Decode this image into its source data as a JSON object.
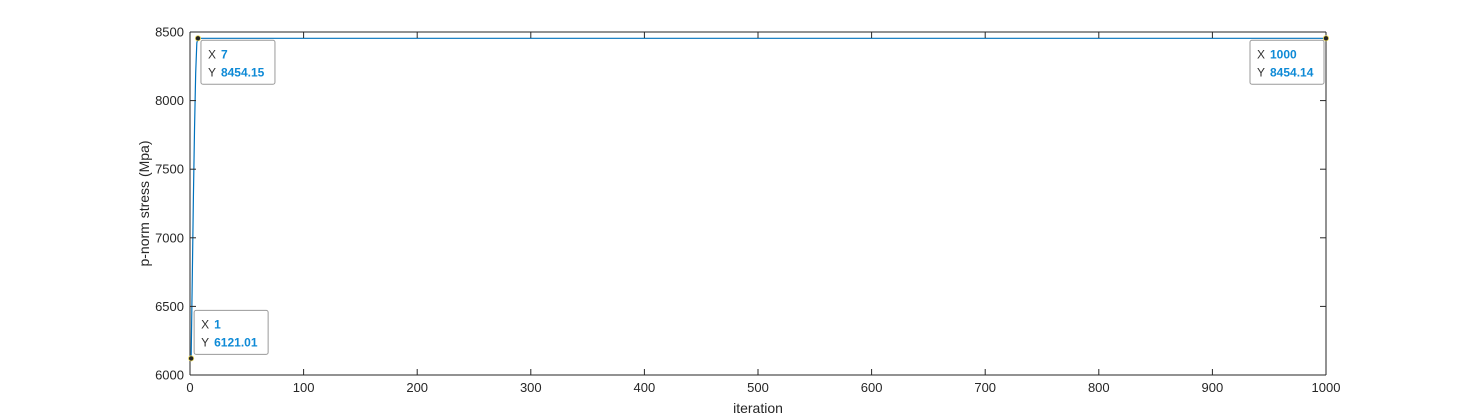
{
  "chart_data": {
    "type": "line",
    "xlabel": "iteration",
    "ylabel": "p-norm stress (Mpa)",
    "xlim": [
      0,
      1000
    ],
    "ylim": [
      6000,
      8500
    ],
    "xticks": [
      0,
      100,
      200,
      300,
      400,
      500,
      600,
      700,
      800,
      900,
      1000
    ],
    "yticks": [
      6000,
      6500,
      7000,
      7500,
      8000,
      8500
    ],
    "grid": false,
    "series": [
      {
        "color": "#0072bd",
        "x": [
          1,
          2,
          3,
          4,
          5,
          6,
          7,
          50,
          100,
          200,
          300,
          400,
          500,
          600,
          700,
          800,
          900,
          1000
        ],
        "y": [
          6121.01,
          6700,
          7300,
          7800,
          8200,
          8420,
          8454.15,
          8454.15,
          8454.15,
          8454.15,
          8454.14,
          8454.14,
          8454.14,
          8454.14,
          8454.14,
          8454.14,
          8454.14,
          8454.14
        ]
      }
    ],
    "datatips": [
      {
        "x_key": "X",
        "y_key": "Y",
        "x_value": "1",
        "y_value": "6121.01",
        "x": 1,
        "y": 6121.01
      },
      {
        "x_key": "X",
        "y_key": "Y",
        "x_value": "7",
        "y_value": "8454.15",
        "x": 7,
        "y": 8454.15
      },
      {
        "x_key": "X",
        "y_key": "Y",
        "x_value": "1000",
        "y_value": "8454.14",
        "x": 1000,
        "y": 8454.14
      }
    ]
  }
}
